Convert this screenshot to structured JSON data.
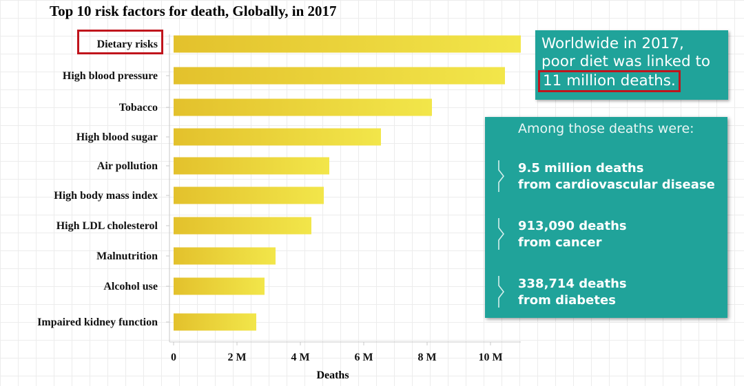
{
  "colors": {
    "bar_start": "#e3c12c",
    "bar_end": "#f2e64a",
    "teal": "#20a39a",
    "highlight": "#c0141c"
  },
  "chart_data": {
    "type": "bar",
    "orientation": "horizontal",
    "title": "Top 10 risk factors for death, Globally, in 2017",
    "xlabel": "Deaths",
    "ylabel": "",
    "xlim": [
      0,
      11000000
    ],
    "x_ticks": [
      0,
      2000000,
      4000000,
      6000000,
      8000000,
      10000000
    ],
    "x_tick_labels": [
      "0",
      "2 M",
      "4 M",
      "6 M",
      "8 M",
      "10 M"
    ],
    "categories": [
      "Dietary risks",
      "High blood pressure",
      "Tobacco",
      "High blood sugar",
      "Air pollution",
      "High body mass index",
      "High LDL cholesterol",
      "Malnutrition",
      "Alcohol use",
      "Impaired kidney function"
    ],
    "values": [
      10950000,
      10450000,
      8150000,
      6550000,
      4920000,
      4730000,
      4340000,
      3220000,
      2860000,
      2610000
    ],
    "highlighted_category": "Dietary risks"
  },
  "callout_top": {
    "line1": "Worldwide in 2017,",
    "line2": "poor diet was linked to",
    "line3": "11 million deaths."
  },
  "callout_bottom": {
    "heading": "Among those deaths were:",
    "stats": [
      {
        "line1": "9.5 million deaths",
        "line2": "from cardiovascular disease"
      },
      {
        "line1": "913,090 deaths",
        "line2": "from cancer"
      },
      {
        "line1": "338,714 deaths",
        "line2": "from diabetes"
      }
    ]
  }
}
